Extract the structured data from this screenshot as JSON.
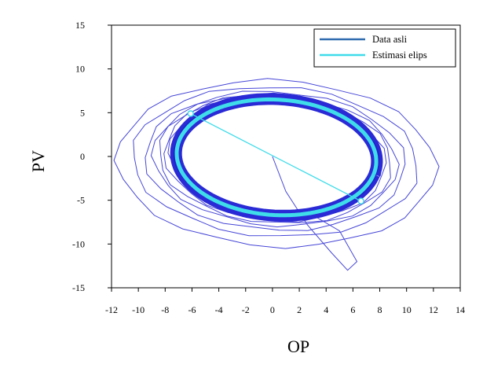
{
  "chart_data": {
    "type": "line",
    "title": "",
    "xlabel": "OP",
    "ylabel": "PV",
    "xlim": [
      -12,
      14
    ],
    "ylim": [
      -15,
      15
    ],
    "xticks": [
      "-12",
      "-10",
      "-8",
      "-6",
      "-4",
      "-2",
      "0",
      "2",
      "4",
      "6",
      "8",
      "10",
      "12",
      "14"
    ],
    "yticks": [
      "15",
      "10",
      "5",
      "0",
      "-5",
      "-10",
      "-15"
    ],
    "legend_position": "top-right",
    "grid": false,
    "series": [
      {
        "name": "Data asli",
        "color": "#4646d8",
        "loops": [
          {
            "cx": 0.3,
            "cy": -0.8,
            "rx": 11.9,
            "ry": 9.5,
            "tilt_deg": -12
          },
          {
            "cx": 0.2,
            "cy": -0.6,
            "rx": 10.6,
            "ry": 8.6,
            "tilt_deg": -13
          },
          {
            "cx": 0.2,
            "cy": -0.5,
            "rx": 9.6,
            "ry": 8.0,
            "tilt_deg": -13
          },
          {
            "cx": 0.2,
            "cy": -0.4,
            "rx": 9.0,
            "ry": 7.6,
            "tilt_deg": -14
          },
          {
            "cx": 0.2,
            "cy": -0.3,
            "rx": 8.6,
            "ry": 7.4,
            "tilt_deg": -14
          },
          {
            "cx": 0.2,
            "cy": -0.2,
            "rx": 8.2,
            "ry": 7.2,
            "tilt_deg": -15
          },
          {
            "cx": 0.2,
            "cy": -0.1,
            "rx": 7.9,
            "ry": 7.0,
            "tilt_deg": -15
          }
        ],
        "transient": [
          [
            0,
            0
          ],
          [
            1.0,
            -4.0
          ],
          [
            2.6,
            -7.8
          ],
          [
            4.4,
            -11.0
          ],
          [
            5.6,
            -13.0
          ],
          [
            6.3,
            -12.0
          ],
          [
            5.0,
            -8.5
          ],
          [
            2.8,
            -6.5
          ]
        ],
        "band_center": [
          0.3,
          -0.1
        ],
        "band_radii": [
          7.55,
          6.6
        ],
        "band_tilt_deg": -15
      },
      {
        "name": "Estimasi elips",
        "color": "#3fdcea",
        "center": [
          0.3,
          -0.1
        ],
        "radii": [
          7.5,
          6.55
        ],
        "tilt_deg": -15,
        "major_axis_line": [
          [
            -6.1,
            4.9
          ],
          [
            6.6,
            -5.1
          ]
        ]
      }
    ]
  }
}
